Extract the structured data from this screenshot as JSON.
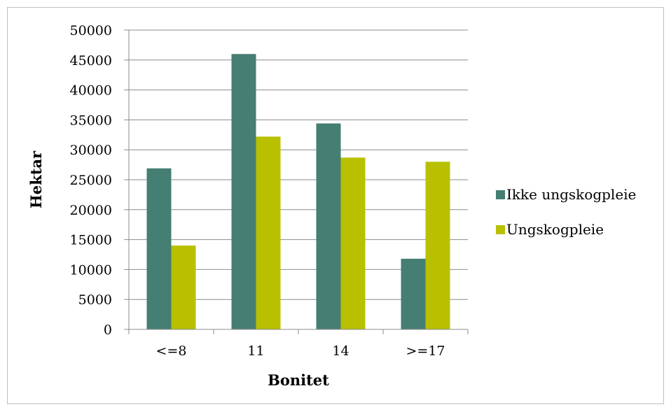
{
  "chart_data": {
    "type": "bar",
    "title": "",
    "xlabel": "Bonitet",
    "ylabel": "Hektar",
    "categories": [
      "<=8",
      "11",
      "14",
      ">=17"
    ],
    "series": [
      {
        "name": "Ikke ungskogpleie",
        "color": "#457e73",
        "values": [
          26900,
          46000,
          34400,
          11800
        ]
      },
      {
        "name": "Ungskogpleie",
        "color": "#b8c000",
        "values": [
          14000,
          32200,
          28700,
          28000
        ]
      }
    ],
    "ylim": [
      0,
      50000
    ],
    "yticks": [
      0,
      5000,
      10000,
      15000,
      20000,
      25000,
      30000,
      35000,
      40000,
      45000,
      50000
    ],
    "grid": true,
    "legend_position": "right"
  }
}
